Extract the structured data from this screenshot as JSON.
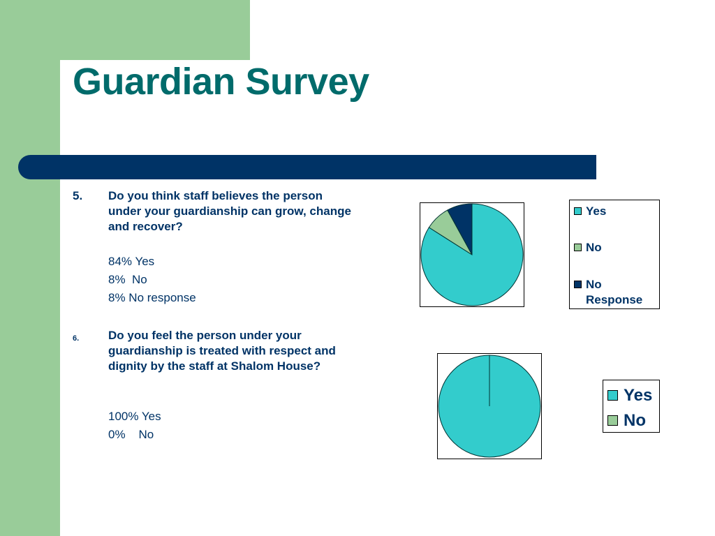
{
  "title": "Guardian Survey",
  "questions": [
    {
      "number": "5.",
      "text": "Do you think staff believes the person under your guardianship can grow, change and recover?",
      "answers": [
        "84% Yes",
        "8%  No",
        "8% No response"
      ]
    },
    {
      "number": "6.",
      "text": "Do you feel the person under your guardianship is treated with respect and dignity by the staff at Shalom House?",
      "answers": [
        "100% Yes",
        "0%    No"
      ]
    }
  ],
  "chart_data": [
    {
      "type": "pie",
      "categories": [
        "Yes",
        "No",
        "No Response"
      ],
      "values": [
        84,
        8,
        8
      ],
      "colors": [
        "#33cccc",
        "#99cc99",
        "#003366"
      ],
      "legend": [
        "Yes",
        "No",
        "No Response"
      ],
      "legend_position": "right",
      "title": ""
    },
    {
      "type": "pie",
      "categories": [
        "Yes",
        "No"
      ],
      "values": [
        100,
        0
      ],
      "colors": [
        "#33cccc",
        "#99cc99"
      ],
      "legend": [
        "Yes",
        "No"
      ],
      "legend_position": "right",
      "title": ""
    }
  ]
}
